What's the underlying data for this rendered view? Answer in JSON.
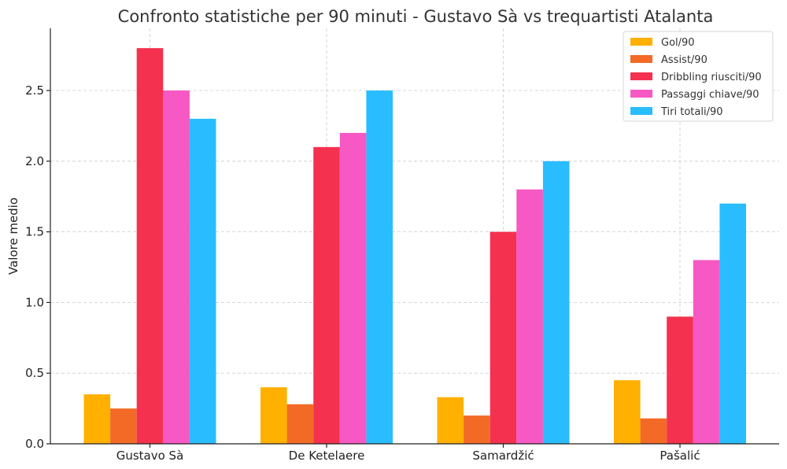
{
  "chart_data": {
    "type": "bar",
    "title": "Confronto statistiche per 90 minuti - Gustavo Sà vs trequartisti Atalanta",
    "xlabel": "",
    "ylabel": "Valore medio",
    "ylim": [
      0,
      2.94
    ],
    "yticks": [
      "0.0",
      "0.5",
      "1.0",
      "1.5",
      "2.0",
      "2.5"
    ],
    "grid": true,
    "legend_position": "top-right",
    "categories": [
      "Gustavo Sà",
      "De Ketelaere",
      "Samardžić",
      "Pašalić"
    ],
    "series": [
      {
        "name": "Gol/90",
        "color": "#FFB000",
        "values": [
          0.35,
          0.4,
          0.33,
          0.45
        ]
      },
      {
        "name": "Assist/90",
        "color": "#F26A25",
        "values": [
          0.25,
          0.28,
          0.2,
          0.18
        ]
      },
      {
        "name": "Dribbling riusciti/90",
        "color": "#F53150",
        "values": [
          2.8,
          2.1,
          1.5,
          0.9
        ]
      },
      {
        "name": "Passaggi chiave/90",
        "color": "#F658C4",
        "values": [
          2.5,
          2.2,
          1.8,
          1.3
        ]
      },
      {
        "name": "Tiri totali/90",
        "color": "#29BDFF",
        "values": [
          2.3,
          2.5,
          2.0,
          1.7
        ]
      }
    ]
  }
}
